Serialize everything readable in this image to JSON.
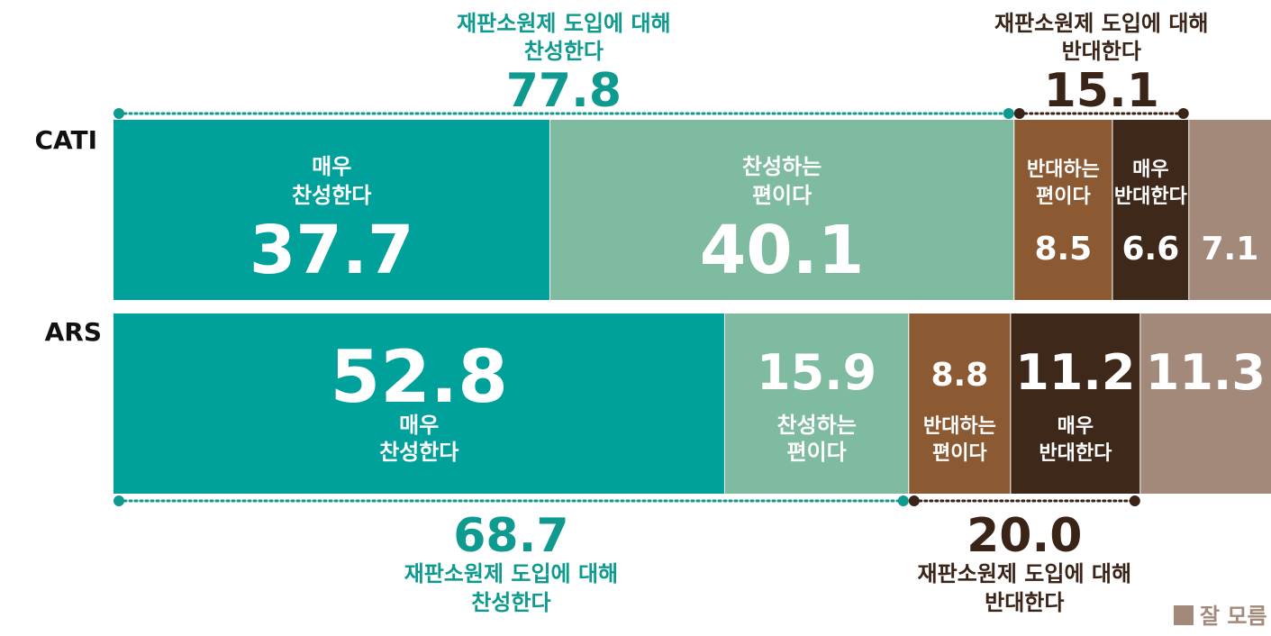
{
  "colors": {
    "strongly_agree": "#00A19A",
    "agree": "#7FBBA0",
    "disagree": "#8B5A33",
    "strongly_disagree": "#3E2819",
    "dont_know": "#A3897A",
    "teal_text": "#0E9A8F",
    "brown_text": "#3A2418",
    "divider": "#ffffff"
  },
  "chart_data": {
    "type": "bar",
    "orientation": "horizontal",
    "stacked": true,
    "categories": [
      "CATI",
      "ARS"
    ],
    "series": [
      {
        "name": "매우 찬성한다",
        "label_lines": [
          "매우",
          "찬성한다"
        ],
        "color_key": "strongly_agree",
        "values": [
          37.7,
          52.8
        ]
      },
      {
        "name": "찬성하는 편이다",
        "label_lines": [
          "찬성하는",
          "편이다"
        ],
        "color_key": "agree",
        "values": [
          40.1,
          15.9
        ]
      },
      {
        "name": "반대하는 편이다",
        "label_lines": [
          "반대하는",
          "편이다"
        ],
        "color_key": "disagree",
        "values": [
          8.5,
          8.8
        ]
      },
      {
        "name": "매우 반대한다",
        "label_lines": [
          "매우",
          "반대한다"
        ],
        "color_key": "strongly_disagree",
        "values": [
          6.6,
          11.2
        ]
      },
      {
        "name": "잘 모름",
        "label_lines": [],
        "color_key": "dont_know",
        "values": [
          7.1,
          11.3
        ]
      }
    ],
    "value_labels": {
      "CATI": [
        "37.7",
        "40.1",
        "8.5",
        "6.6",
        "7.1"
      ],
      "ARS": [
        "52.8",
        "15.9",
        "8.8",
        "11.2",
        "11.3"
      ]
    },
    "summaries": [
      {
        "category": "CATI",
        "group": "agree",
        "title_lines": [
          "재판소원제 도입에 대해",
          "찬성한다"
        ],
        "value": "77.8",
        "from_series": 0,
        "to_series": 1,
        "position": "above"
      },
      {
        "category": "CATI",
        "group": "disagree",
        "title_lines": [
          "재판소원제 도입에 대해",
          "반대한다"
        ],
        "value": "15.1",
        "from_series": 2,
        "to_series": 3,
        "position": "above"
      },
      {
        "category": "ARS",
        "group": "agree",
        "title_lines": [
          "재판소원제 도입에 대해",
          "찬성한다"
        ],
        "value": "68.7",
        "from_series": 0,
        "to_series": 1,
        "position": "below"
      },
      {
        "category": "ARS",
        "group": "disagree",
        "title_lines": [
          "재판소원제 도입에 대해",
          "반대한다"
        ],
        "value": "20.0",
        "from_series": 2,
        "to_series": 3,
        "position": "below"
      }
    ],
    "legend": {
      "label": "잘 모름",
      "color_key": "dont_know",
      "position": "bottom-right"
    },
    "xlim": [
      0,
      100
    ]
  }
}
